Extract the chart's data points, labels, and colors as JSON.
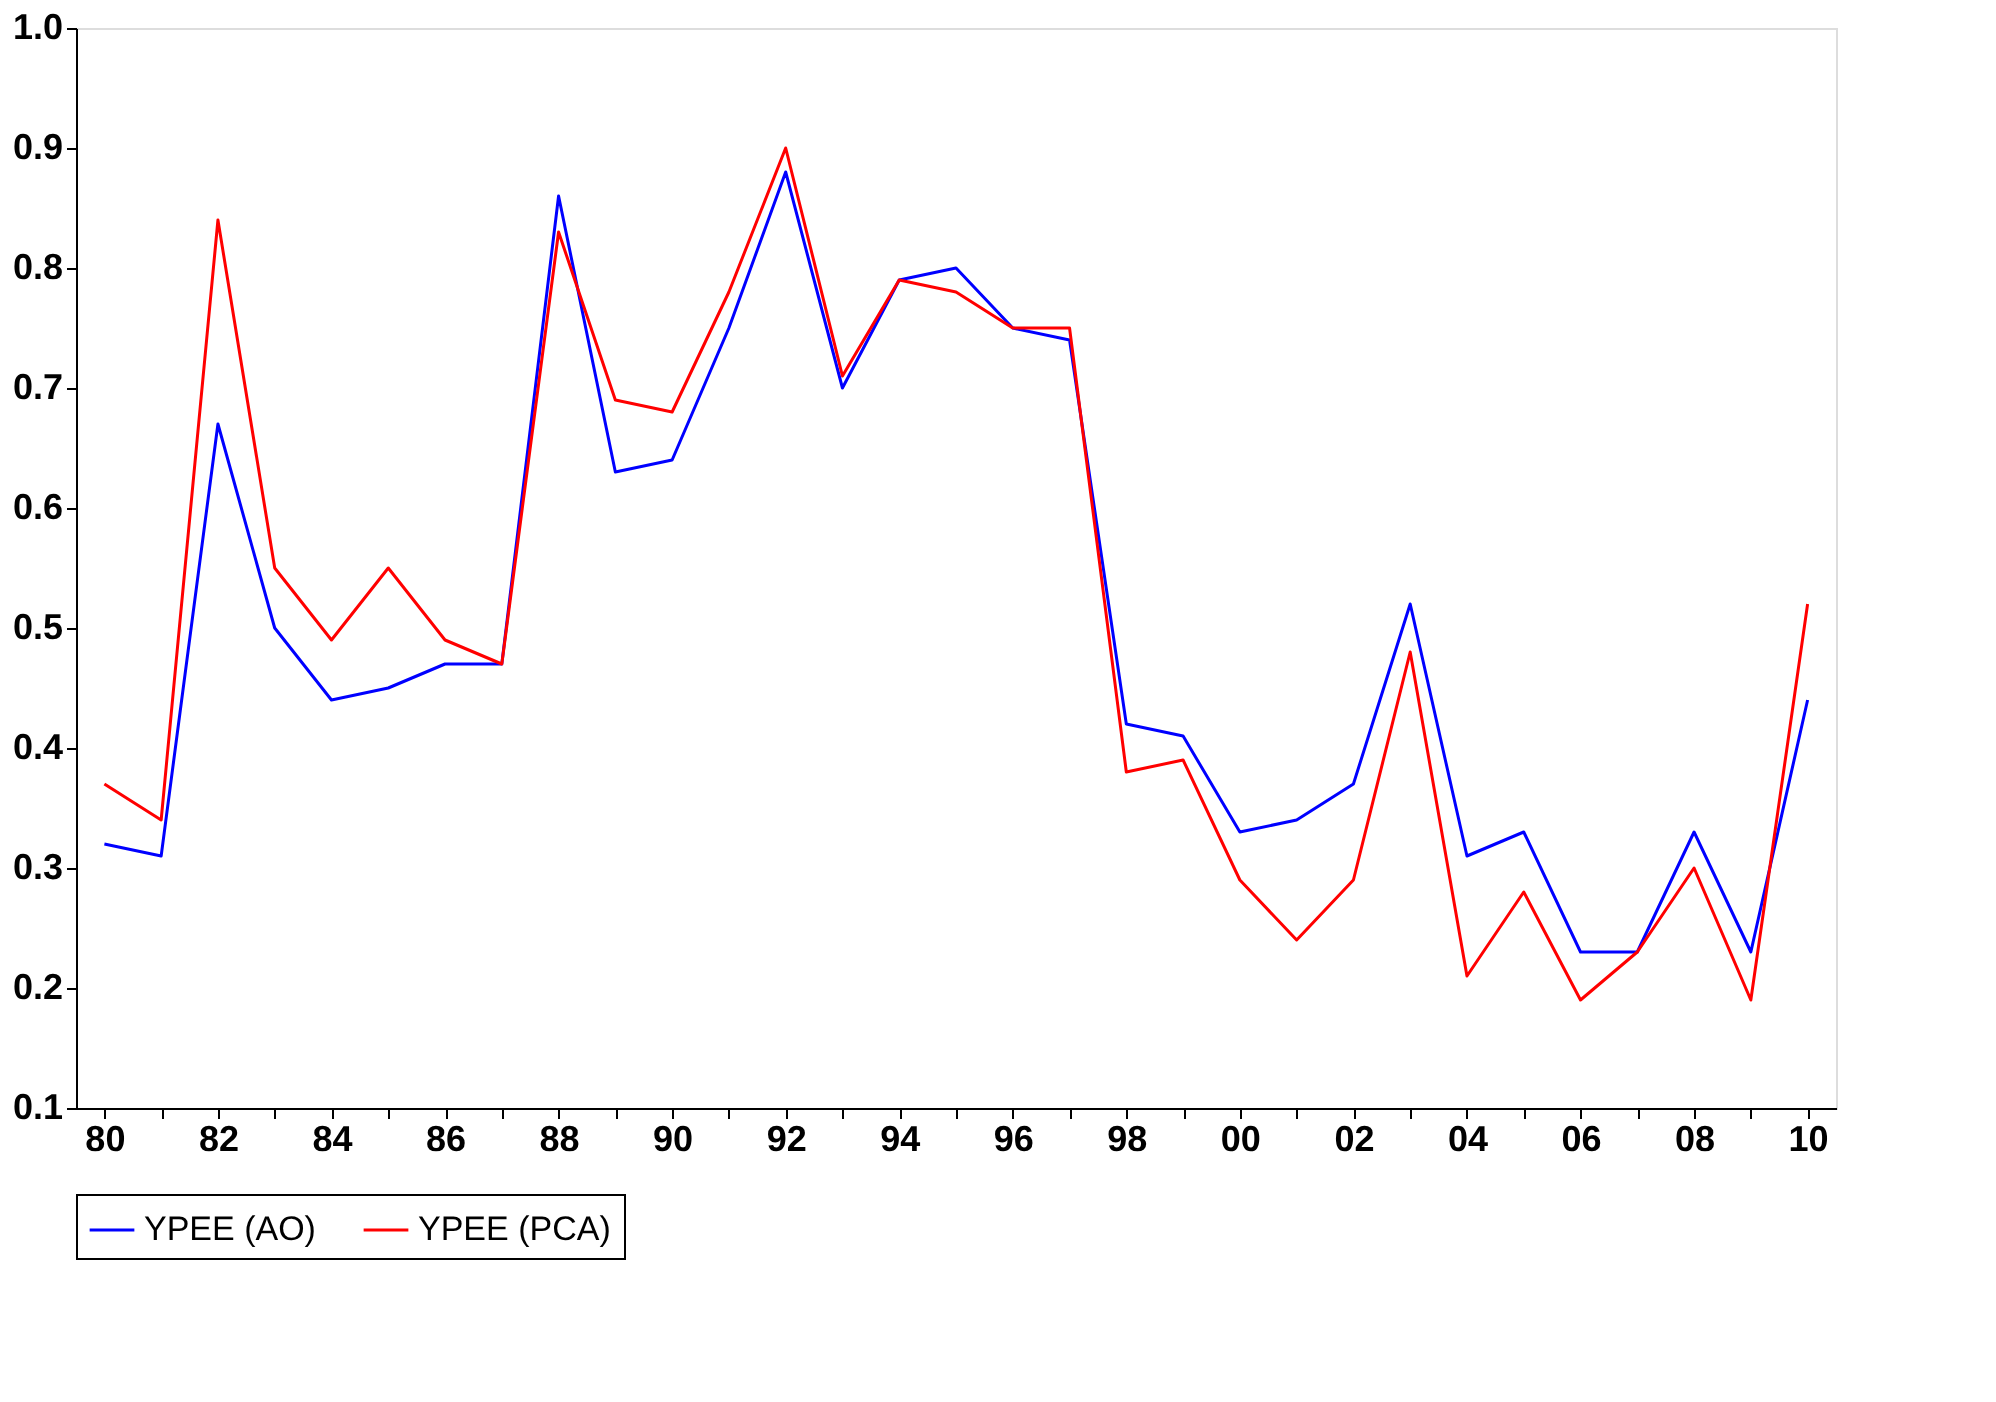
{
  "chart_data": {
    "type": "line",
    "categories": [
      "80",
      null,
      "82",
      null,
      "84",
      null,
      "86",
      null,
      "88",
      null,
      "90",
      null,
      "92",
      null,
      "94",
      null,
      "96",
      null,
      "98",
      null,
      "00",
      null,
      "02",
      null,
      "04",
      null,
      "06",
      null,
      "08",
      null,
      "10"
    ],
    "series": [
      {
        "name": "YPEE (AO)",
        "color": "#0000ff",
        "values": [
          0.32,
          0.31,
          0.67,
          0.5,
          0.44,
          0.45,
          0.47,
          0.47,
          0.86,
          0.63,
          0.64,
          0.75,
          0.88,
          0.7,
          0.79,
          0.8,
          0.75,
          0.74,
          0.42,
          0.41,
          0.33,
          0.34,
          0.37,
          0.52,
          0.31,
          0.33,
          0.23,
          0.23,
          0.33,
          0.23,
          0.44
        ]
      },
      {
        "name": "YPEE (PCA)",
        "color": "#ff0000",
        "values": [
          0.37,
          0.34,
          0.84,
          0.55,
          0.49,
          0.55,
          0.49,
          0.47,
          0.83,
          0.69,
          0.68,
          0.78,
          0.9,
          0.71,
          0.79,
          0.78,
          0.75,
          0.75,
          0.38,
          0.39,
          0.29,
          0.24,
          0.29,
          0.48,
          0.21,
          0.28,
          0.19,
          0.23,
          0.3,
          0.19,
          0.52
        ]
      }
    ],
    "ylim": [
      0.1,
      1.0
    ],
    "yticks": [
      {
        "value": 0.1,
        "label": "0.1"
      },
      {
        "value": 0.2,
        "label": "0.2"
      },
      {
        "value": 0.3,
        "label": "0.3"
      },
      {
        "value": 0.4,
        "label": "0.4"
      },
      {
        "value": 0.5,
        "label": "0.5"
      },
      {
        "value": 0.6,
        "label": "0.6"
      },
      {
        "value": 0.7,
        "label": "0.7"
      },
      {
        "value": 0.8,
        "label": "0.8"
      },
      {
        "value": 0.9,
        "label": "0.9"
      },
      {
        "value": 1.0,
        "label": "1.0"
      }
    ],
    "grid": false,
    "legend": "bottom",
    "marker": "none",
    "line_style": "solid"
  }
}
